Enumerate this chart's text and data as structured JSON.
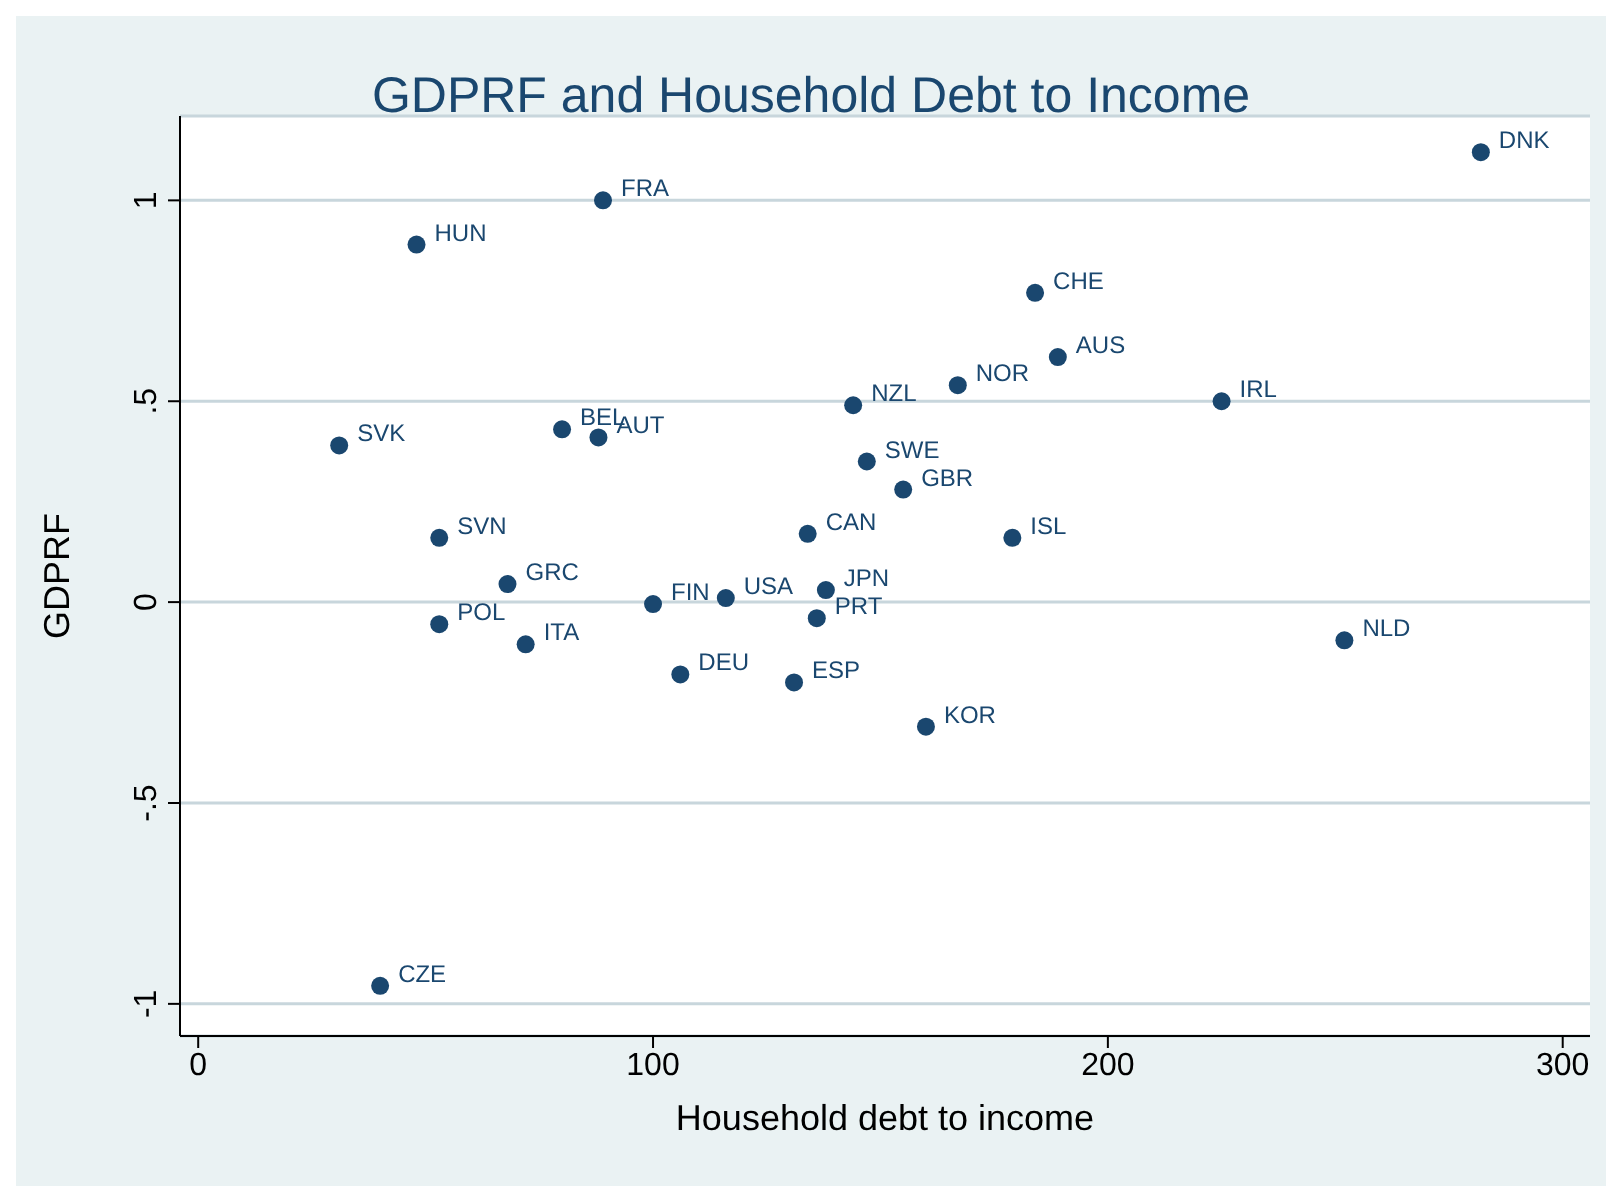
{
  "chart_data": {
    "type": "scatter",
    "title": "GDPRF and Household Debt to Income",
    "xlabel": "Household debt to income",
    "ylabel": "GDPRF",
    "xlim": [
      -4,
      306
    ],
    "ylim": [
      -1.08,
      1.21
    ],
    "xticks": [
      0,
      100,
      200,
      300
    ],
    "yticks": [
      {
        "value": -1,
        "label": "-1"
      },
      {
        "value": -0.5,
        "label": "-.5"
      },
      0,
      {
        "value": 0.5,
        "label": ".5"
      },
      1
    ],
    "grid": "y",
    "marker": "circle",
    "x": [
      282,
      89,
      48,
      184,
      189,
      167,
      225,
      144,
      31,
      80,
      88,
      147,
      155,
      53,
      134,
      179,
      68,
      138,
      116,
      100,
      136,
      53,
      72,
      252,
      106,
      131,
      160,
      40
    ],
    "series": [
      {
        "color": "#1a476f",
        "values": [
          1.12,
          1.0,
          0.89,
          0.77,
          0.61,
          0.54,
          0.5,
          0.49,
          0.39,
          0.43,
          0.41,
          0.35,
          0.28,
          0.16,
          0.17,
          0.16,
          0.045,
          0.03,
          0.01,
          -0.005,
          -0.04,
          -0.055,
          -0.105,
          -0.095,
          -0.18,
          -0.2,
          -0.31,
          -0.955
        ]
      }
    ],
    "annotations": [
      {
        "text": "DNK",
        "x": 282,
        "y": 1.12
      },
      {
        "text": "FRA",
        "x": 89,
        "y": 1.0
      },
      {
        "text": "HUN",
        "x": 48,
        "y": 0.89
      },
      {
        "text": "CHE",
        "x": 184,
        "y": 0.77
      },
      {
        "text": "AUS",
        "x": 189,
        "y": 0.61
      },
      {
        "text": "NOR",
        "x": 167,
        "y": 0.54
      },
      {
        "text": "IRL",
        "x": 225,
        "y": 0.5
      },
      {
        "text": "NZL",
        "x": 144,
        "y": 0.49
      },
      {
        "text": "SVK",
        "x": 31,
        "y": 0.39
      },
      {
        "text": "BEL",
        "x": 80,
        "y": 0.43
      },
      {
        "text": "AUT",
        "x": 88,
        "y": 0.41
      },
      {
        "text": "SWE",
        "x": 147,
        "y": 0.35
      },
      {
        "text": "GBR",
        "x": 155,
        "y": 0.28
      },
      {
        "text": "SVN",
        "x": 53,
        "y": 0.16
      },
      {
        "text": "CAN",
        "x": 134,
        "y": 0.17
      },
      {
        "text": "ISL",
        "x": 179,
        "y": 0.16
      },
      {
        "text": "GRC",
        "x": 68,
        "y": 0.045
      },
      {
        "text": "JPN",
        "x": 138,
        "y": 0.03
      },
      {
        "text": "USA",
        "x": 116,
        "y": 0.01
      },
      {
        "text": "FIN",
        "x": 100,
        "y": -0.005
      },
      {
        "text": "PRT",
        "x": 136,
        "y": -0.04
      },
      {
        "text": "POL",
        "x": 53,
        "y": -0.055
      },
      {
        "text": "ITA",
        "x": 72,
        "y": -0.105
      },
      {
        "text": "NLD",
        "x": 252,
        "y": -0.095
      },
      {
        "text": "DEU",
        "x": 106,
        "y": -0.18
      },
      {
        "text": "ESP",
        "x": 131,
        "y": -0.2
      },
      {
        "text": "KOR",
        "x": 160,
        "y": -0.31
      },
      {
        "text": "CZE",
        "x": 40,
        "y": -0.955
      }
    ]
  }
}
